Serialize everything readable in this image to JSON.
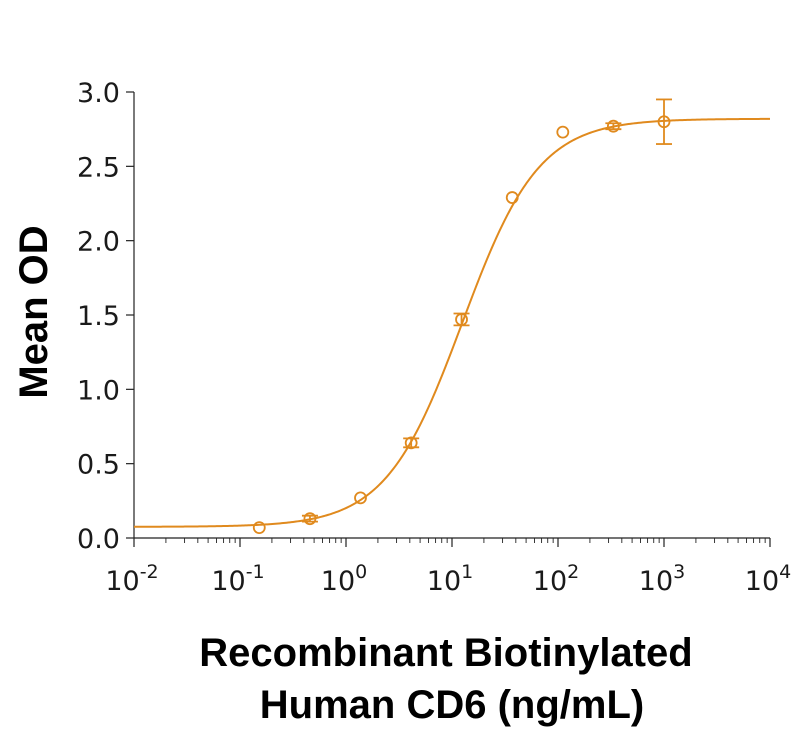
{
  "chart_data": {
    "type": "scatter",
    "title": "",
    "xlabel_lines": [
      "Recombinant Biotinylated",
      "Human CD6 (ng/mL)"
    ],
    "ylabel": "Mean OD",
    "xscale": "log",
    "xlim": [
      0.01,
      10000
    ],
    "ylim": [
      0,
      3.0
    ],
    "x_ticks": [
      {
        "value": 0.01,
        "base": "10",
        "exp": "-2"
      },
      {
        "value": 0.1,
        "base": "10",
        "exp": "-1"
      },
      {
        "value": 1,
        "base": "10",
        "exp": "0"
      },
      {
        "value": 10,
        "base": "10",
        "exp": "1"
      },
      {
        "value": 100,
        "base": "10",
        "exp": "2"
      },
      {
        "value": 1000,
        "base": "10",
        "exp": "3"
      },
      {
        "value": 10000,
        "base": "10",
        "exp": "4"
      }
    ],
    "y_ticks": [
      {
        "value": 0.0,
        "label": "0.0"
      },
      {
        "value": 0.5,
        "label": "0.5"
      },
      {
        "value": 1.0,
        "label": "1.0"
      },
      {
        "value": 1.5,
        "label": "1.5"
      },
      {
        "value": 2.0,
        "label": "2.0"
      },
      {
        "value": 2.5,
        "label": "2.5"
      },
      {
        "value": 3.0,
        "label": "3.0"
      }
    ],
    "grid": false,
    "legend": "none",
    "color": "#E08A1E",
    "series": [
      {
        "points": [
          {
            "x": 0.152,
            "y": 0.07,
            "err": 0.0
          },
          {
            "x": 0.457,
            "y": 0.13,
            "err": 0.02
          },
          {
            "x": 1.37,
            "y": 0.27,
            "err": 0.0
          },
          {
            "x": 4.12,
            "y": 0.64,
            "err": 0.03
          },
          {
            "x": 12.3,
            "y": 1.47,
            "err": 0.04
          },
          {
            "x": 37.0,
            "y": 2.29,
            "err": 0.0
          },
          {
            "x": 111,
            "y": 2.73,
            "err": 0.0
          },
          {
            "x": 333,
            "y": 2.77,
            "err": 0.02
          },
          {
            "x": 1000,
            "y": 2.8,
            "err": 0.15
          }
        ],
        "fit": {
          "model": "4PL",
          "bottom": 0.075,
          "top": 2.82,
          "ec50": 12.5,
          "hill": 1.2
        }
      }
    ]
  }
}
